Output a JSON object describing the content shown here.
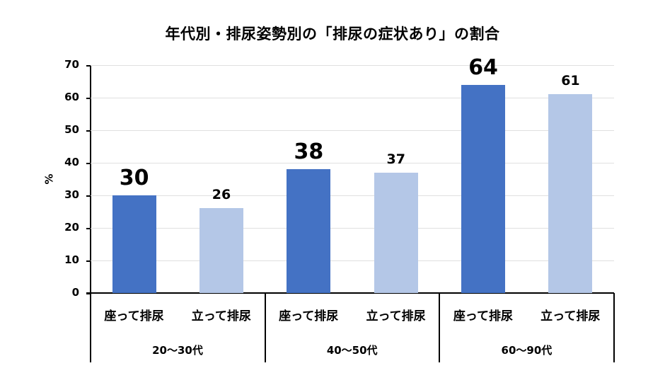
{
  "chart_data": {
    "type": "bar",
    "title": "年代別・排尿姿勢別の「排尿の症状あり」の割合",
    "xlabel": "",
    "ylabel": "%",
    "ylim": [
      0,
      70
    ],
    "yticks": [
      0,
      10,
      20,
      30,
      40,
      50,
      60,
      70
    ],
    "grid": true,
    "legend": null,
    "groups": [
      "20〜30代",
      "40〜50代",
      "60〜90代"
    ],
    "categories": [
      "座って排尿",
      "立って排尿"
    ],
    "series": [
      {
        "name": "座って排尿",
        "color": "#4472C4",
        "values": [
          30,
          38,
          64
        ]
      },
      {
        "name": "立って排尿",
        "color": "#B4C7E7",
        "values": [
          26,
          37,
          61
        ]
      }
    ],
    "bars": [
      {
        "group": "20〜30代",
        "category": "座って排尿",
        "value": 30,
        "label": "30"
      },
      {
        "group": "20〜30代",
        "category": "立って排尿",
        "value": 26,
        "label": "26"
      },
      {
        "group": "40〜50代",
        "category": "座って排尿",
        "value": 38,
        "label": "38"
      },
      {
        "group": "40〜50代",
        "category": "立って排尿",
        "value": 37,
        "label": "37"
      },
      {
        "group": "60〜90代",
        "category": "座って排尿",
        "value": 64,
        "label": "64"
      },
      {
        "group": "60〜90代",
        "category": "立って排尿",
        "value": 61,
        "label": "61"
      }
    ]
  }
}
